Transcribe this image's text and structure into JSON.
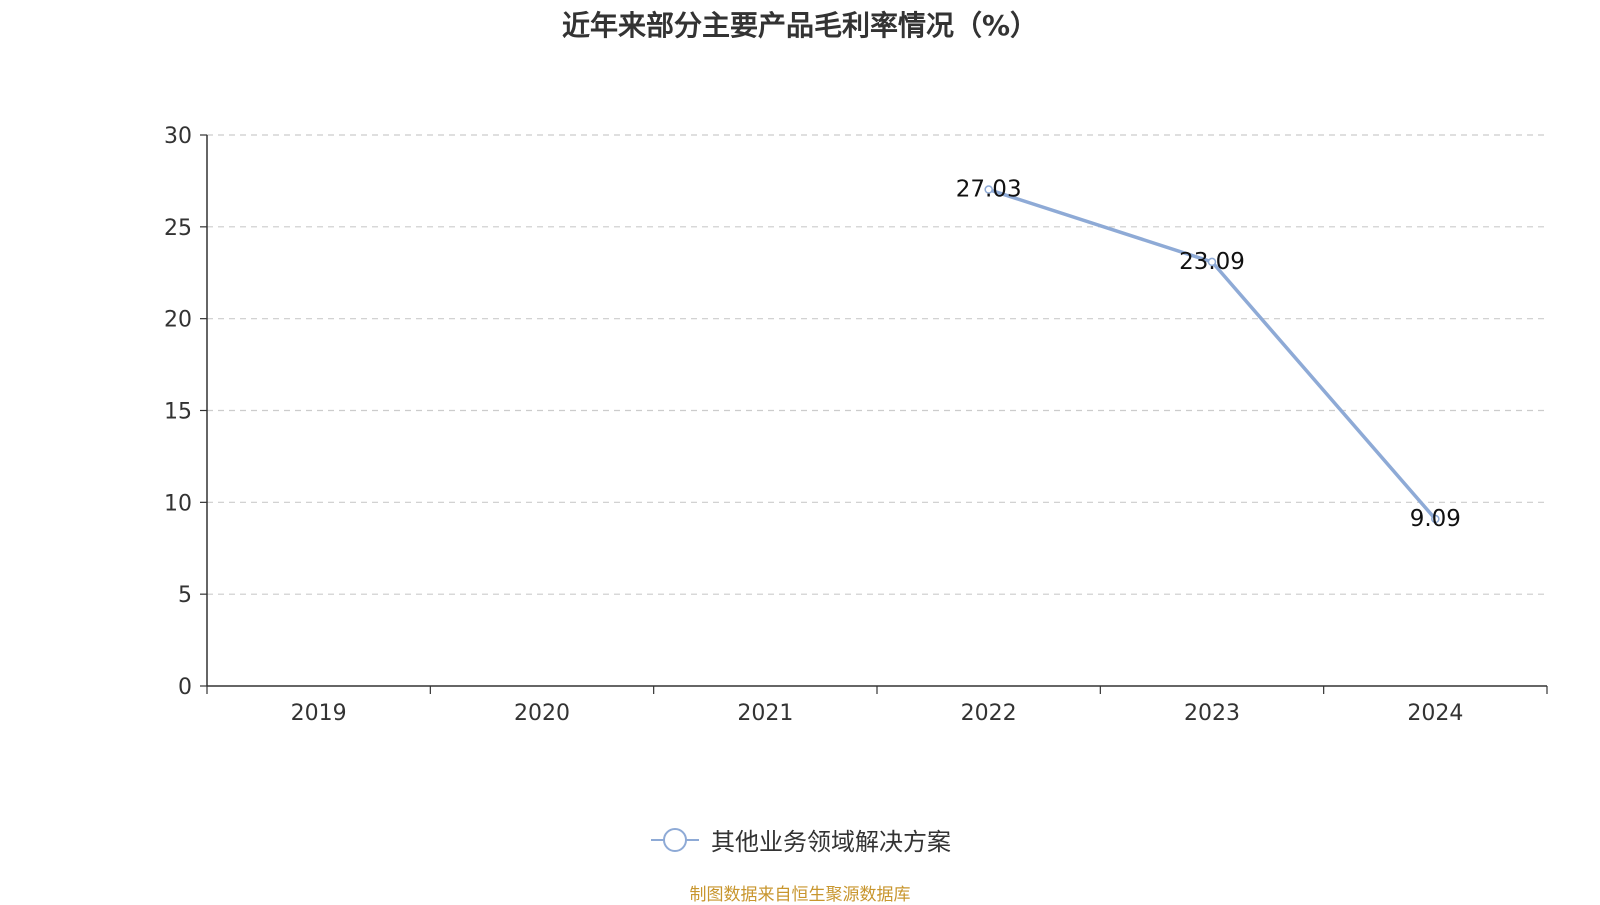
{
  "colors": {
    "series": "#8eaad6",
    "axis": "#333333",
    "grid": "#cccccc",
    "source": "#c8962e"
  },
  "source_note": "制图数据来自恒生聚源数据库",
  "chart_data": {
    "type": "line",
    "title": "近年来部分主要产品毛利率情况（%）",
    "categories": [
      "2019",
      "2020",
      "2021",
      "2022",
      "2023",
      "2024"
    ],
    "series": [
      {
        "name": "其他业务领域解决方案",
        "values": [
          null,
          null,
          null,
          27.03,
          23.09,
          9.09
        ]
      }
    ],
    "ylim": [
      0,
      30
    ],
    "yticks": [
      0,
      5,
      10,
      15,
      20,
      25,
      30
    ],
    "grid": true,
    "legend": "bottom-center"
  }
}
